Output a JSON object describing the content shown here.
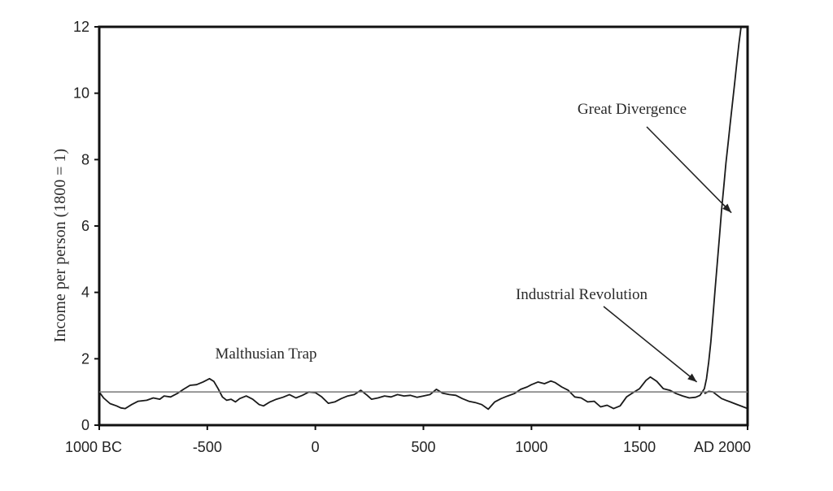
{
  "chart_data": {
    "type": "line",
    "title": "",
    "ylabel": "Income per person (1800 = 1)",
    "xlabel": "",
    "xlim": [
      -1000,
      2000
    ],
    "ylim": [
      0,
      12
    ],
    "grid": false,
    "x_ticks": [
      {
        "value": -1000,
        "label": "1000 BC"
      },
      {
        "value": -500,
        "label": "-500"
      },
      {
        "value": 0,
        "label": "0"
      },
      {
        "value": 500,
        "label": "500"
      },
      {
        "value": 1000,
        "label": "1000"
      },
      {
        "value": 1500,
        "label": "1500"
      },
      {
        "value": 2000,
        "label": "AD 2000"
      }
    ],
    "y_ticks": [
      {
        "value": 0,
        "label": "0"
      },
      {
        "value": 2,
        "label": "2"
      },
      {
        "value": 4,
        "label": "4"
      },
      {
        "value": 6,
        "label": "6"
      },
      {
        "value": 8,
        "label": "8"
      },
      {
        "value": 10,
        "label": "10"
      },
      {
        "value": 12,
        "label": "12"
      }
    ],
    "reference_line": {
      "y": 1.0
    },
    "series": [
      {
        "x": [
          -1000,
          -980,
          -950,
          -920,
          -900,
          -880,
          -850,
          -820,
          -780,
          -750,
          -720,
          -700,
          -670,
          -640,
          -610,
          -580,
          -550,
          -520,
          -490,
          -470,
          -450,
          -430,
          -410,
          -390,
          -370,
          -350,
          -320,
          -290,
          -260,
          -240,
          -210,
          -180,
          -150,
          -120,
          -90,
          -60,
          -30,
          0,
          30,
          60,
          90,
          120,
          150,
          180,
          210,
          240,
          260,
          290,
          320,
          350,
          380,
          410,
          440,
          470,
          500,
          530,
          560,
          590,
          620,
          650,
          680,
          710,
          740,
          770,
          800,
          830,
          860,
          890,
          920,
          950,
          980,
          1000,
          1030,
          1060,
          1090,
          1110,
          1140,
          1170,
          1200,
          1230,
          1260,
          1290,
          1320,
          1350,
          1380,
          1410,
          1440,
          1470,
          1500,
          1530,
          1550,
          1580,
          1610,
          1640,
          1670,
          1700,
          1730,
          1760,
          1780,
          1800,
          1810,
          1820,
          1830,
          1840,
          1850,
          1860,
          1870,
          1880,
          1890,
          1900,
          1910,
          1920,
          1930,
          1940,
          1950,
          1960,
          1970,
          1980,
          1990,
          2000
        ],
        "y": [
          1.0,
          0.82,
          0.65,
          0.58,
          0.52,
          0.5,
          0.62,
          0.72,
          0.75,
          0.82,
          0.78,
          0.88,
          0.85,
          0.95,
          1.08,
          1.2,
          1.22,
          1.3,
          1.4,
          1.32,
          1.1,
          0.85,
          0.75,
          0.78,
          0.7,
          0.8,
          0.88,
          0.78,
          0.62,
          0.58,
          0.7,
          0.78,
          0.84,
          0.92,
          0.82,
          0.9,
          1.0,
          0.98,
          0.85,
          0.66,
          0.7,
          0.8,
          0.88,
          0.92,
          1.05,
          0.9,
          0.78,
          0.82,
          0.88,
          0.85,
          0.92,
          0.88,
          0.9,
          0.84,
          0.88,
          0.92,
          1.08,
          0.96,
          0.92,
          0.9,
          0.8,
          0.72,
          0.68,
          0.62,
          0.48,
          0.7,
          0.8,
          0.88,
          0.95,
          1.08,
          1.15,
          1.22,
          1.3,
          1.25,
          1.33,
          1.28,
          1.15,
          1.05,
          0.85,
          0.82,
          0.7,
          0.72,
          0.55,
          0.6,
          0.5,
          0.58,
          0.85,
          0.98,
          1.1,
          1.35,
          1.45,
          1.32,
          1.1,
          1.05,
          0.95,
          0.88,
          0.82,
          0.84,
          0.9,
          1.1,
          1.4,
          1.9,
          2.5,
          3.3,
          4.1,
          4.9,
          5.7,
          6.5,
          7.2,
          7.9,
          8.5,
          9.1,
          9.7,
          10.3,
          10.9,
          11.5,
          12.0,
          12.0,
          12.0,
          12.0
        ]
      },
      {
        "x": [
          1800,
          1820,
          1840,
          1860,
          1880,
          1900,
          1920,
          1940,
          1960,
          1980,
          2000
        ],
        "y": [
          0.95,
          1.02,
          1.0,
          0.9,
          0.8,
          0.75,
          0.7,
          0.65,
          0.6,
          0.55,
          0.5
        ]
      }
    ],
    "annotations": [
      {
        "text": "Great Divergence",
        "arrow_to": {
          "x": 1925,
          "y": 6.4
        }
      },
      {
        "text": "Industrial Revolution",
        "arrow_to": {
          "x": 1765,
          "y": 1.3
        }
      },
      {
        "text": "Malthusian Trap"
      }
    ]
  }
}
